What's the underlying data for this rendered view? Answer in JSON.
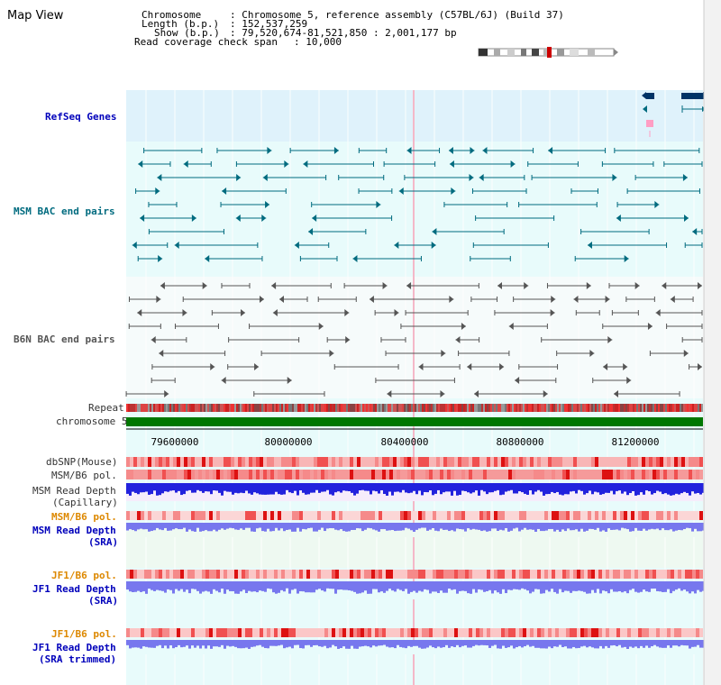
{
  "panel": {
    "title": "Map View"
  },
  "info": {
    "chromosome_key": "Chromosome",
    "chromosome_value": ": Chromosome 5, reference assembly (C57BL/6J) (Build 37)",
    "length_key": "Length (b.p.)",
    "length_value": ": 152,537,259",
    "show_key": "Show (b.p.)",
    "show_value": ": 79,520,674-81,521,850 : 2,001,177 bp",
    "span_key": "Read coverage check span",
    "span_value": ": 10,000"
  },
  "tracks": {
    "refseq": "RefSeq Genes",
    "msm_bac": "MSM BAC end pairs",
    "b6n_bac": "B6N BAC end pairs",
    "repeat": "Repeat",
    "chromosome": "chromosome 5",
    "dbsnp": "dbSNP(Mouse)",
    "msm_b6_pol_1": "MSM/B6 pol.",
    "msm_depth_cap_1": "MSM Read Depth",
    "msm_depth_cap_2": "(Capillary)",
    "msm_b6_pol_2": "MSM/B6 pol.",
    "msm_depth_sra_1": "MSM Read Depth",
    "msm_depth_sra_2": "(SRA)",
    "jf1_b6_pol_1": "JF1/B6 pol.",
    "jf1_depth_sra_1": "JF1 Read Depth",
    "jf1_depth_sra_2": "(SRA)",
    "jf1_b6_pol_2": "JF1/B6 pol.",
    "jf1_depth_trim_1": "JF1 Read Depth",
    "jf1_depth_trim_2": "(SRA trimmed)"
  },
  "axis": {
    "ticks": [
      "79600000",
      "80000000",
      "80400000",
      "80800000",
      "81200000"
    ]
  },
  "colors": {
    "refseq_bg": "#dff2fb",
    "track_bg": "#e8fbfb",
    "msm_bac": "#006b7f",
    "b6n_bac": "#555555",
    "chromosome": "#007700",
    "label_blue": "#0000bb",
    "label_teal": "#006b7f",
    "label_orange": "#dd8800",
    "depth_cap": "#2222dd",
    "depth_sra": "#7777ee"
  }
}
